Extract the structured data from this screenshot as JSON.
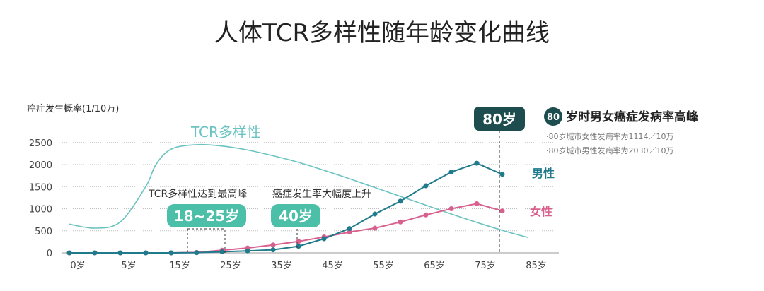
{
  "chart_data": {
    "type": "line",
    "title": "人体TCR多样性随年龄变化曲线",
    "ylabel": "癌症发生概率(1/10万)",
    "ylim": [
      0,
      2500
    ],
    "yticks": [
      0,
      500,
      1000,
      1500,
      2000,
      2500
    ],
    "x_labels": [
      "0岁",
      "5岁",
      "15岁",
      "25岁",
      "35岁",
      "45岁",
      "55岁",
      "65岁",
      "75岁",
      "85岁"
    ],
    "grid": true,
    "series": [
      {
        "name": "男性",
        "color": "#1f7a8c",
        "x": [
          0,
          5,
          10,
          15,
          20,
          25,
          30,
          35,
          40,
          45,
          50,
          55,
          60,
          65,
          70,
          75,
          80,
          85
        ],
        "y": [
          0,
          0,
          0,
          0,
          0,
          5,
          25,
          45,
          70,
          150,
          320,
          550,
          880,
          1170,
          1520,
          1830,
          2030,
          1780
        ]
      },
      {
        "name": "女性",
        "color": "#d8608e",
        "x": [
          0,
          5,
          10,
          15,
          20,
          25,
          30,
          35,
          40,
          45,
          50,
          55,
          60,
          65,
          70,
          75,
          80,
          85
        ],
        "y": [
          0,
          0,
          0,
          0,
          0,
          10,
          60,
          110,
          180,
          260,
          360,
          470,
          560,
          700,
          860,
          1000,
          1114,
          950
        ]
      },
      {
        "name": "TCR多样性",
        "color": "#6ac3c1",
        "x": [
          0,
          5,
          10,
          15,
          17,
          20,
          25,
          30,
          35,
          40,
          45,
          50,
          55,
          60,
          65,
          70,
          75,
          80,
          85,
          90
        ],
        "y": [
          650,
          560,
          700,
          1500,
          2000,
          2350,
          2450,
          2420,
          2330,
          2200,
          2050,
          1870,
          1680,
          1480,
          1280,
          1080,
          880,
          690,
          510,
          350
        ]
      }
    ],
    "annotations": {
      "tcr_peak": {
        "text": "TCR多样性达到最高峰",
        "badge": "18~25岁"
      },
      "cancer_rise": {
        "text": "癌症发生率大幅度上升",
        "badge": "40岁"
      },
      "peak": {
        "badge": "80岁",
        "circle": "80",
        "title": "岁时男女癌症发病率高峰",
        "notes": [
          "·80岁城市女性发病率为1114／10万",
          "·80岁城市男性发病率为2030／10万"
        ]
      }
    }
  }
}
